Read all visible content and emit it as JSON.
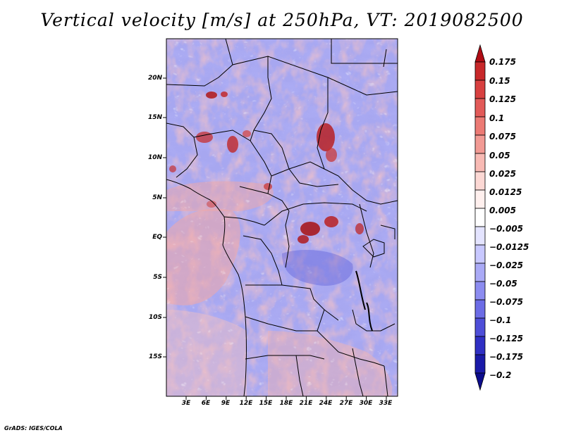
{
  "title": "Vertical velocity [m/s] at 250hPa, VT: 2019082500",
  "map": {
    "variable": "Vertical velocity",
    "units": "m/s",
    "level": "250hPa",
    "valid_time": "2019082500",
    "lat_labels": [
      "20N",
      "15N",
      "10N",
      "5N",
      "EQ",
      "5S",
      "10S",
      "15S"
    ],
    "lon_labels": [
      "3E",
      "6E",
      "9E",
      "12E",
      "15E",
      "18E",
      "21E",
      "24E",
      "27E",
      "30E",
      "33E"
    ],
    "lat_range": [
      -20,
      24
    ],
    "lon_range": [
      0,
      35
    ]
  },
  "colorbar": {
    "labels": [
      "0.175",
      "0.15",
      "0.125",
      "0.1",
      "0.075",
      "0.05",
      "0.025",
      "0.0125",
      "0.005",
      "−0.005",
      "−0.0125",
      "−0.025",
      "−0.05",
      "−0.075",
      "−0.1",
      "−0.125",
      "−0.175",
      "−0.2"
    ],
    "colors": [
      "#b00c14",
      "#c8282a",
      "#d84040",
      "#e25a58",
      "#ec7a74",
      "#f29a94",
      "#f8bab4",
      "#fcd8d4",
      "#fff0ee",
      "#ffffff",
      "#e4e4ff",
      "#c8c8ff",
      "#aaaaf6",
      "#8c8cf0",
      "#6c6ce6",
      "#4e4ed8",
      "#3030c4",
      "#1a1aa8",
      "#0c0c8c"
    ]
  },
  "footer": "GrADS: IGES/COLA"
}
